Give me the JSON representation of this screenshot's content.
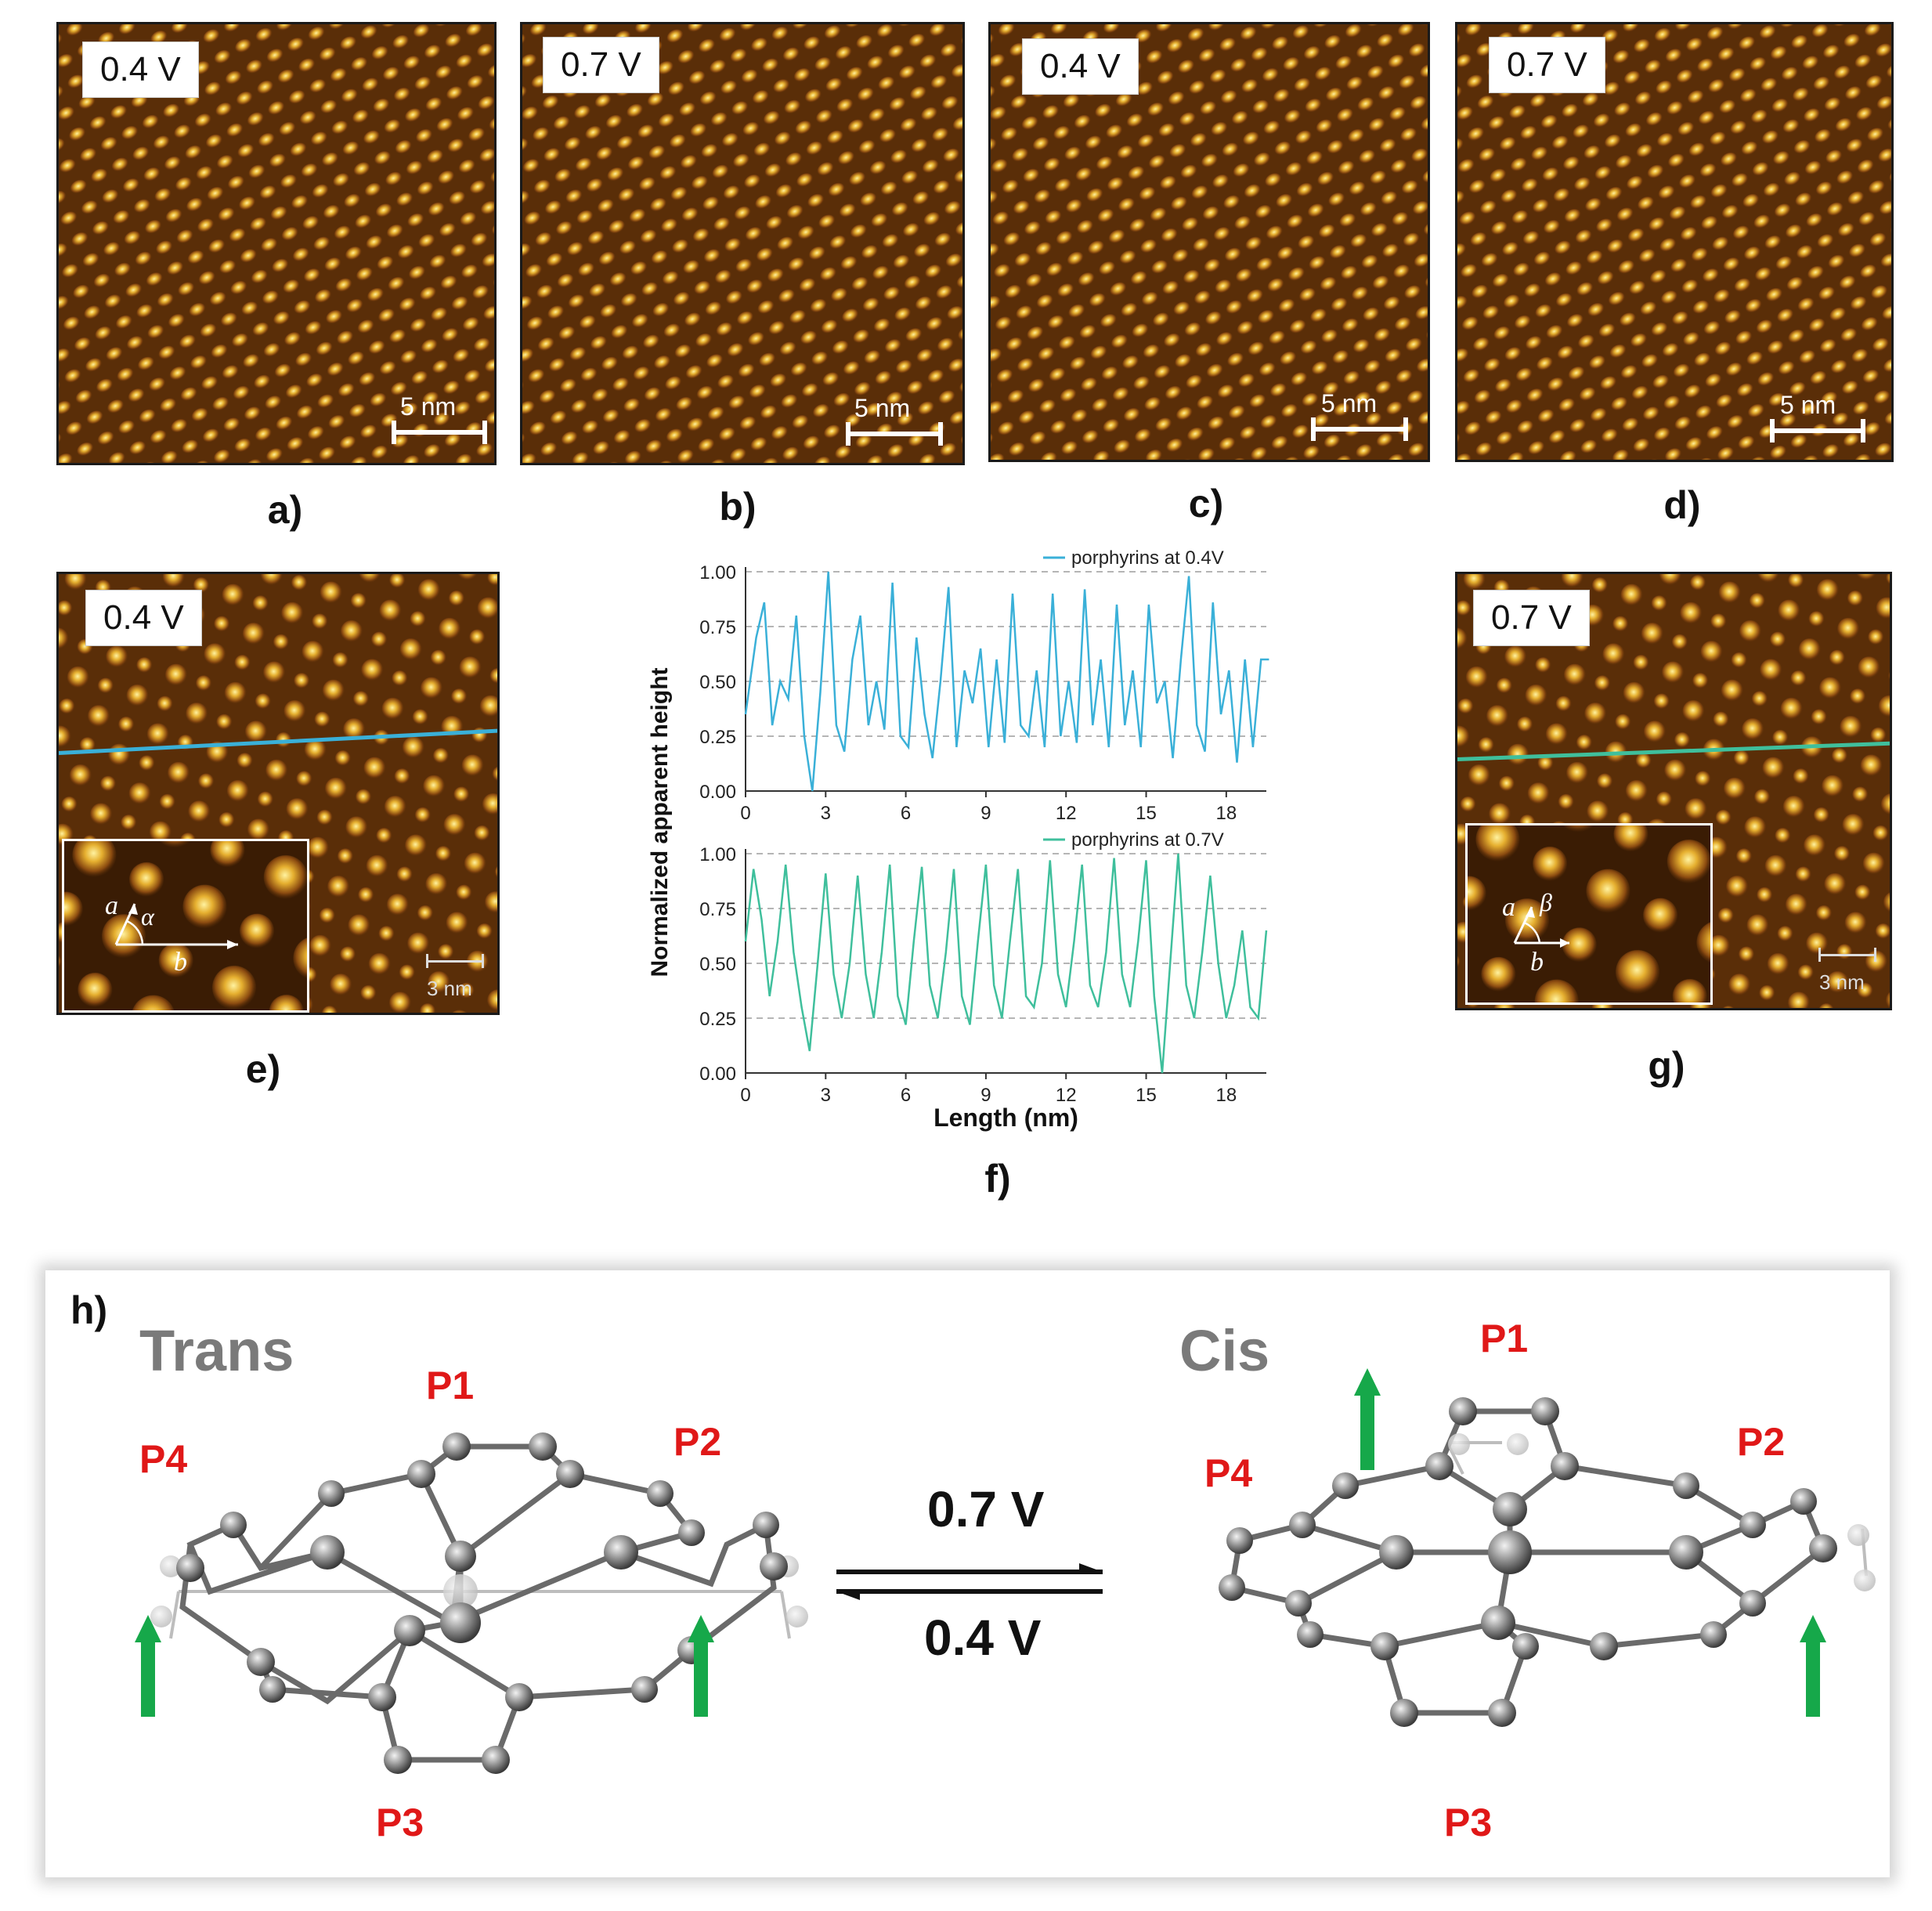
{
  "panels": {
    "a": {
      "letter": "a)",
      "voltage": "0.4 V",
      "scale": "5 nm"
    },
    "b": {
      "letter": "b)",
      "voltage": "0.7 V",
      "scale": "5 nm"
    },
    "c": {
      "letter": "c)",
      "voltage": "0.4 V",
      "scale": "5 nm"
    },
    "d": {
      "letter": "d)",
      "voltage": "0.7 V",
      "scale": "5 nm"
    },
    "e": {
      "letter": "e)",
      "voltage": "0.4 V",
      "scale": "3 nm",
      "inset_a": "a",
      "inset_angle": "α",
      "inset_b": "b"
    },
    "f": {
      "letter": "f)"
    },
    "g": {
      "letter": "g)",
      "voltage": "0.7 V",
      "scale": "3 nm",
      "inset_a": "a",
      "inset_angle": "β",
      "inset_b": "b"
    },
    "h": {
      "letter": "h)"
    }
  },
  "colors": {
    "stm_dark": "#5a2e08",
    "stm_bright": "#f4d060",
    "line_04V": "#3ab0d8",
    "line_07V": "#3fbf9c",
    "arrow_green": "#16a84a",
    "label_red": "#e01818"
  },
  "chart_data": {
    "type": "line",
    "ylabel": "Normalized apparent  height",
    "xlabel": "Length (nm)",
    "xlim": [
      0,
      19.5
    ],
    "ylim": [
      0,
      1
    ],
    "xticks": [
      0,
      3,
      6,
      9,
      12,
      15,
      18
    ],
    "yticks": [
      "0.00",
      "0.25",
      "0.50",
      "0.75",
      "1.00"
    ],
    "grid": "horizontal dashed",
    "legend": "top-right",
    "series": [
      {
        "name": "porphyrins at 0.4V",
        "color": "#3ab0d8",
        "x": [
          0,
          0.4,
          0.7,
          1.0,
          1.3,
          1.6,
          1.9,
          2.2,
          2.5,
          2.8,
          3.1,
          3.4,
          3.7,
          4.0,
          4.3,
          4.6,
          4.9,
          5.2,
          5.5,
          5.8,
          6.1,
          6.4,
          6.7,
          7.0,
          7.3,
          7.6,
          7.9,
          8.2,
          8.5,
          8.8,
          9.1,
          9.4,
          9.7,
          10.0,
          10.3,
          10.6,
          10.9,
          11.2,
          11.5,
          11.8,
          12.1,
          12.4,
          12.7,
          13.0,
          13.3,
          13.6,
          13.9,
          14.2,
          14.5,
          14.8,
          15.1,
          15.4,
          15.7,
          16.0,
          16.3,
          16.6,
          16.9,
          17.2,
          17.5,
          17.8,
          18.1,
          18.4,
          18.7,
          19.0,
          19.3,
          19.6
        ],
        "y": [
          0.35,
          0.7,
          0.86,
          0.3,
          0.5,
          0.42,
          0.8,
          0.25,
          0.0,
          0.45,
          1.0,
          0.3,
          0.18,
          0.6,
          0.8,
          0.3,
          0.5,
          0.28,
          0.95,
          0.25,
          0.2,
          0.7,
          0.35,
          0.15,
          0.5,
          0.93,
          0.2,
          0.55,
          0.4,
          0.65,
          0.2,
          0.6,
          0.22,
          0.9,
          0.3,
          0.25,
          0.55,
          0.2,
          0.9,
          0.25,
          0.5,
          0.22,
          0.92,
          0.3,
          0.6,
          0.2,
          0.85,
          0.3,
          0.55,
          0.2,
          0.85,
          0.4,
          0.5,
          0.15,
          0.6,
          0.98,
          0.3,
          0.18,
          0.86,
          0.35,
          0.55,
          0.13,
          0.6,
          0.2,
          0.6,
          0.6
        ]
      },
      {
        "name": "porphyrins at 0.7V",
        "color": "#3fbf9c",
        "x": [
          0,
          0.3,
          0.6,
          0.9,
          1.2,
          1.5,
          1.8,
          2.1,
          2.4,
          2.7,
          3.0,
          3.3,
          3.6,
          3.9,
          4.2,
          4.5,
          4.8,
          5.1,
          5.4,
          5.7,
          6.0,
          6.3,
          6.6,
          6.9,
          7.2,
          7.5,
          7.8,
          8.1,
          8.4,
          8.7,
          9.0,
          9.3,
          9.6,
          9.9,
          10.2,
          10.5,
          10.8,
          11.1,
          11.4,
          11.7,
          12.0,
          12.3,
          12.6,
          12.9,
          13.2,
          13.5,
          13.8,
          14.1,
          14.4,
          14.7,
          15.0,
          15.3,
          15.6,
          15.9,
          16.2,
          16.5,
          16.8,
          17.1,
          17.4,
          17.7,
          18.0,
          18.3,
          18.6,
          18.9,
          19.2,
          19.5
        ],
        "y": [
          0.6,
          0.93,
          0.7,
          0.35,
          0.6,
          0.95,
          0.55,
          0.3,
          0.1,
          0.5,
          0.91,
          0.45,
          0.25,
          0.5,
          0.9,
          0.45,
          0.25,
          0.55,
          0.95,
          0.35,
          0.22,
          0.6,
          0.94,
          0.4,
          0.25,
          0.55,
          0.93,
          0.35,
          0.22,
          0.6,
          0.95,
          0.4,
          0.25,
          0.6,
          0.93,
          0.35,
          0.3,
          0.5,
          0.97,
          0.45,
          0.3,
          0.6,
          0.95,
          0.4,
          0.3,
          0.55,
          0.98,
          0.45,
          0.3,
          0.6,
          0.97,
          0.35,
          0.0,
          0.5,
          1.0,
          0.4,
          0.25,
          0.55,
          0.9,
          0.5,
          0.25,
          0.4,
          0.65,
          0.3,
          0.25,
          0.65
        ]
      }
    ]
  },
  "scheme": {
    "trans_label": "Trans",
    "cis_label": "Cis",
    "forward_voltage": "0.7 V",
    "reverse_voltage": "0.4 V",
    "pyrrole_labels": [
      "P1",
      "P2",
      "P3",
      "P4"
    ]
  }
}
